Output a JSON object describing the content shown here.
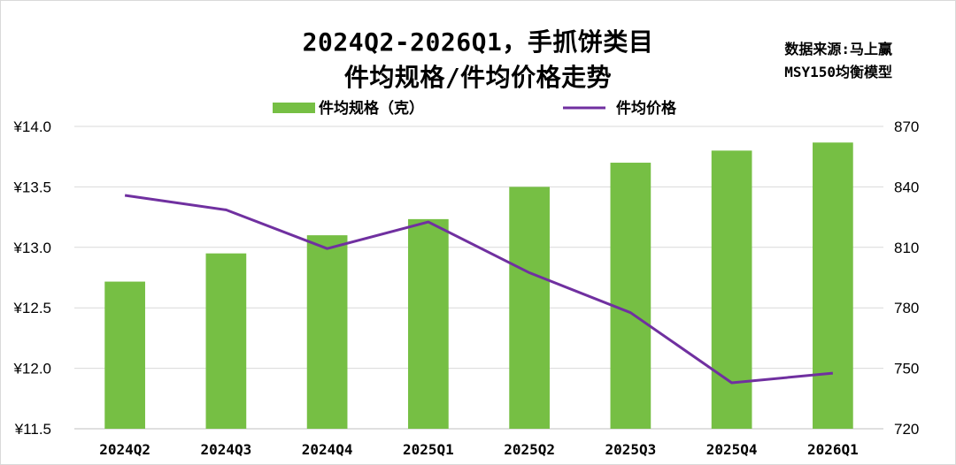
{
  "title_line1": "2024Q2-2026Q1，手抓饼类目",
  "title_line2": "件均规格/件均价格走势",
  "source_line1": "数据来源:马上赢",
  "source_line2": "MSY150均衡模型",
  "colors": {
    "bar": "#76bf44",
    "line": "#7030a0",
    "grid": "#d9d9d9",
    "axis": "#bfbfbf"
  },
  "chart_data": {
    "type": "bar",
    "categories": [
      "2024Q2",
      "2024Q3",
      "2024Q4",
      "2025Q1",
      "2025Q2",
      "2025Q3",
      "2025Q4",
      "2026Q1"
    ],
    "series": [
      {
        "name": "件均规格（克）",
        "type": "bar",
        "axis": "right",
        "values": [
          793,
          807,
          816,
          824,
          840,
          852,
          858,
          862
        ]
      },
      {
        "name": "件均价格",
        "type": "line",
        "axis": "left",
        "values": [
          13.43,
          13.31,
          12.99,
          13.21,
          12.79,
          12.46,
          11.88,
          11.96
        ]
      }
    ],
    "left_axis": {
      "min": 11.5,
      "max": 14.0,
      "ticks": [
        "¥11.5",
        "¥12.0",
        "¥12.5",
        "¥13.0",
        "¥13.5",
        "¥14.0"
      ],
      "tick_values": [
        11.5,
        12.0,
        12.5,
        13.0,
        13.5,
        14.0
      ]
    },
    "right_axis": {
      "min": 720,
      "max": 870,
      "ticks": [
        "720",
        "750",
        "780",
        "810",
        "840",
        "870"
      ],
      "tick_values": [
        720,
        750,
        780,
        810,
        840,
        870
      ]
    },
    "grid": true,
    "legend_position": "top"
  }
}
